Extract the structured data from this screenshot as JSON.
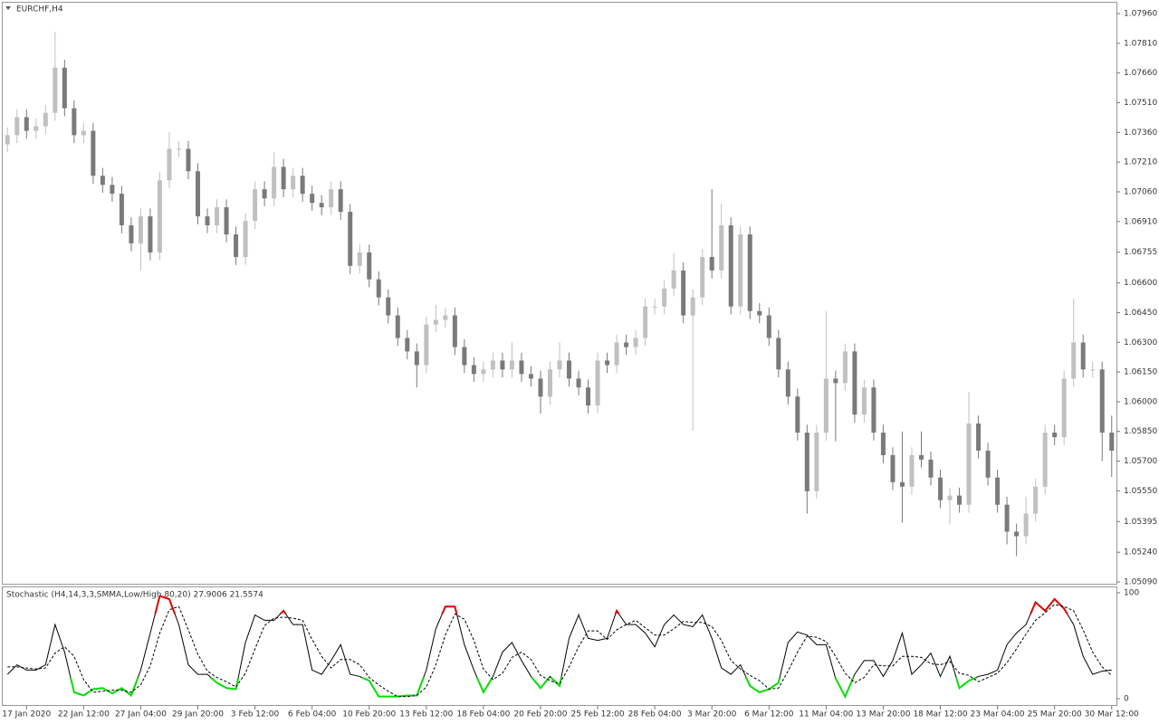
{
  "chart_data": [
    {
      "type": "candlestick",
      "title": "EURCHF,H4",
      "categories": [
        null,
        null,
        "17 Jan 2020",
        null,
        null,
        null,
        null,
        null,
        "22 Jan 12:00",
        null,
        null,
        null,
        null,
        null,
        "27 Jan 04:00",
        null,
        null,
        null,
        null,
        null,
        "29 Jan 20:00",
        null,
        null,
        null,
        null,
        null,
        "3 Feb 12:00",
        null,
        null,
        null,
        null,
        null,
        "6 Feb 04:00",
        null,
        null,
        null,
        null,
        null,
        "10 Feb 20:00",
        null,
        null,
        null,
        null,
        null,
        "13 Feb 12:00",
        null,
        null,
        null,
        null,
        null,
        "18 Feb 04:00",
        null,
        null,
        null,
        null,
        null,
        "20 Feb 20:00",
        null,
        null,
        null,
        null,
        null,
        "25 Feb 12:00",
        null,
        null,
        null,
        null,
        null,
        "28 Feb 04:00",
        null,
        null,
        null,
        null,
        null,
        "3 Mar 20:00",
        null,
        null,
        null,
        null,
        null,
        "6 Mar 12:00",
        null,
        null,
        null,
        null,
        null,
        "11 Mar 04:00",
        null,
        null,
        null,
        null,
        null,
        "13 Mar 20:00",
        null,
        null,
        null,
        null,
        null,
        "18 Mar 12:00",
        null,
        null,
        null,
        null,
        null,
        "23 Mar 04:00",
        null,
        null,
        null,
        null,
        null,
        "25 Mar 20:00",
        null,
        null,
        null,
        null,
        null,
        "30 Mar 12:00"
      ],
      "open": [
        1.073,
        1.07346,
        1.07437,
        1.07368,
        1.07391,
        1.07459,
        1.07687,
        1.07482,
        1.07346,
        1.07368,
        1.07141,
        1.07095,
        1.0705,
        1.06891,
        1.068,
        1.06936,
        1.06754,
        1.07118,
        1.07277,
        1.07277,
        1.07164,
        1.06936,
        1.06891,
        1.06982,
        1.06845,
        1.06731,
        1.06913,
        1.07073,
        1.07027,
        1.07186,
        1.07073,
        1.07141,
        1.0705,
        1.07004,
        1.06982,
        1.07073,
        1.06959,
        1.06686,
        1.06754,
        1.06618,
        1.06527,
        1.06436,
        1.06322,
        1.06254,
        1.06185,
        1.0639,
        1.06413,
        1.06436,
        1.06276,
        1.06185,
        1.0614,
        1.06163,
        1.06208,
        1.06163,
        1.06208,
        1.0614,
        1.06117,
        1.06026,
        1.06163,
        1.06208,
        1.06117,
        1.06072,
        1.05981,
        1.06208,
        1.06185,
        1.06299,
        1.06276,
        1.06322,
        1.06481,
        1.06481,
        1.06572,
        1.06663,
        1.06436,
        1.06527,
        1.06731,
        1.06663,
        1.06891,
        1.06481,
        1.06845,
        1.06458,
        1.06436,
        1.06322,
        1.06163,
        1.06026,
        1.05844,
        1.05548,
        1.05844,
        1.06117,
        1.06094,
        1.06254,
        1.05935,
        1.06072,
        1.05844,
        1.0573,
        1.05594,
        1.05571,
        1.0573,
        1.05708,
        1.05617,
        1.05503,
        1.05526,
        1.0548,
        1.0589,
        1.05753,
        1.05617,
        1.0548,
        1.05344,
        1.05321,
        1.05435,
        1.05571,
        1.05844,
        1.05821,
        1.06117,
        1.06299,
        1.06163,
        1.06163,
        1.05844
      ],
      "high": [
        1.07386,
        1.07477,
        1.07477,
        1.07431,
        1.07499,
        1.07869,
        1.07727,
        1.07522,
        1.07408,
        1.07408,
        1.07181,
        1.07135,
        1.0709,
        1.06931,
        1.06976,
        1.06976,
        1.07158,
        1.0736,
        1.07317,
        1.07317,
        1.07204,
        1.06976,
        1.07022,
        1.07022,
        1.06885,
        1.06953,
        1.07113,
        1.07113,
        1.0726,
        1.07226,
        1.07181,
        1.07181,
        1.0709,
        1.07044,
        1.07113,
        1.07113,
        1.06999,
        1.06794,
        1.06794,
        1.06658,
        1.06567,
        1.06476,
        1.06362,
        1.06294,
        1.0643,
        1.0649,
        1.06476,
        1.06476,
        1.06316,
        1.06225,
        1.06203,
        1.06248,
        1.06248,
        1.063,
        1.06248,
        1.0618,
        1.06157,
        1.06203,
        1.063,
        1.06248,
        1.06157,
        1.06112,
        1.06248,
        1.06248,
        1.06339,
        1.06339,
        1.06362,
        1.06521,
        1.06521,
        1.06612,
        1.0675,
        1.06703,
        1.06567,
        1.06771,
        1.07073,
        1.07,
        1.06931,
        1.06885,
        1.06885,
        1.06498,
        1.06476,
        1.06362,
        1.06203,
        1.06066,
        1.05884,
        1.05884,
        1.06458,
        1.06157,
        1.06294,
        1.06294,
        1.06112,
        1.06112,
        1.05884,
        1.0577,
        1.0585,
        1.0577,
        1.0585,
        1.05748,
        1.05657,
        1.05566,
        1.05566,
        1.0605,
        1.0593,
        1.05793,
        1.05657,
        1.0552,
        1.05384,
        1.0552,
        1.05611,
        1.05884,
        1.05884,
        1.06157,
        1.0652,
        1.06339,
        1.06203,
        1.06203,
        1.0593
      ],
      "low": [
        1.0726,
        1.07306,
        1.07328,
        1.07328,
        1.07351,
        1.07419,
        1.07442,
        1.07306,
        1.07306,
        1.07101,
        1.07055,
        1.0701,
        1.06851,
        1.0676,
        1.06663,
        1.06714,
        1.06714,
        1.07078,
        1.07237,
        1.07124,
        1.06896,
        1.06851,
        1.06851,
        1.06805,
        1.06691,
        1.06691,
        1.06873,
        1.06987,
        1.06987,
        1.07033,
        1.07033,
        1.0701,
        1.06964,
        1.06942,
        1.06942,
        1.06919,
        1.06646,
        1.06646,
        1.06578,
        1.06487,
        1.06396,
        1.06282,
        1.06214,
        1.06072,
        1.06145,
        1.0635,
        1.06373,
        1.06236,
        1.06145,
        1.061,
        1.061,
        1.06123,
        1.06123,
        1.06123,
        1.061,
        1.06077,
        1.0594,
        1.05986,
        1.06123,
        1.06077,
        1.06032,
        1.05941,
        1.05941,
        1.06145,
        1.06145,
        1.06236,
        1.06236,
        1.06282,
        1.06441,
        1.06441,
        1.06532,
        1.06396,
        1.05853,
        1.06487,
        1.06623,
        1.06623,
        1.06441,
        1.06441,
        1.06418,
        1.06396,
        1.06282,
        1.06123,
        1.05986,
        1.05804,
        1.05435,
        1.05508,
        1.05804,
        1.058,
        1.06054,
        1.05895,
        1.05895,
        1.05804,
        1.0569,
        1.05554,
        1.0539,
        1.05531,
        1.05668,
        1.05577,
        1.05463,
        1.0538,
        1.0544,
        1.0544,
        1.05713,
        1.05577,
        1.0544,
        1.0528,
        1.0522,
        1.05281,
        1.05395,
        1.05531,
        1.05781,
        1.05781,
        1.06077,
        1.06123,
        1.06123,
        1.057,
        1.0562
      ],
      "close": [
        1.07346,
        1.07437,
        1.07368,
        1.07391,
        1.07459,
        1.07687,
        1.07482,
        1.07346,
        1.07368,
        1.07141,
        1.07095,
        1.0705,
        1.06891,
        1.068,
        1.06936,
        1.06754,
        1.07118,
        1.07277,
        1.07277,
        1.07164,
        1.06936,
        1.06891,
        1.06982,
        1.06845,
        1.06731,
        1.06913,
        1.07073,
        1.07027,
        1.07186,
        1.07073,
        1.07141,
        1.0705,
        1.07004,
        1.06982,
        1.07073,
        1.06959,
        1.06686,
        1.06754,
        1.06618,
        1.06527,
        1.06436,
        1.06322,
        1.06254,
        1.06185,
        1.0639,
        1.06413,
        1.06436,
        1.06276,
        1.06185,
        1.0614,
        1.06163,
        1.06208,
        1.06163,
        1.06208,
        1.0614,
        1.06117,
        1.06026,
        1.06163,
        1.06208,
        1.06117,
        1.06072,
        1.05981,
        1.06208,
        1.06185,
        1.06299,
        1.06276,
        1.06322,
        1.06481,
        1.06481,
        1.06572,
        1.06663,
        1.06436,
        1.06527,
        1.06731,
        1.06663,
        1.06891,
        1.06481,
        1.06845,
        1.06458,
        1.06436,
        1.06322,
        1.06163,
        1.06026,
        1.05844,
        1.05548,
        1.05844,
        1.06117,
        1.06094,
        1.06254,
        1.05935,
        1.06072,
        1.05844,
        1.0573,
        1.05594,
        1.05571,
        1.0573,
        1.05708,
        1.05617,
        1.05503,
        1.05526,
        1.0548,
        1.0589,
        1.05753,
        1.05617,
        1.0548,
        1.05344,
        1.05321,
        1.05435,
        1.05571,
        1.05844,
        1.05821,
        1.06117,
        1.06299,
        1.06163,
        1.06163,
        1.05844,
        1.05753
      ],
      "up_color": "#c0c0c0",
      "down_color": "#7a7a7a",
      "ylim": [
        1.05081,
        1.08015
      ],
      "yticks": [
        {
          "value": 1.0796,
          "label": "1.07960"
        },
        {
          "value": 1.0781,
          "label": "1.07810"
        },
        {
          "value": 1.0766,
          "label": "1.07660"
        },
        {
          "value": 1.0751,
          "label": "1.07510"
        },
        {
          "value": 1.0736,
          "label": "1.07360"
        },
        {
          "value": 1.0721,
          "label": "1.07210"
        },
        {
          "value": 1.0706,
          "label": "1.07060"
        },
        {
          "value": 1.0691,
          "label": "1.06910"
        },
        1.06755,
        {
          "value": 1.066,
          "label": "1.06600"
        },
        {
          "value": 1.0645,
          "label": "1.06450"
        },
        {
          "value": 1.063,
          "label": "1.06300"
        },
        {
          "value": 1.0615,
          "label": "1.06150"
        },
        {
          "value": 1.06,
          "label": "1.06000"
        },
        {
          "value": 1.0585,
          "label": "1.05850"
        },
        {
          "value": 1.057,
          "label": "1.05700"
        },
        {
          "value": 1.0555,
          "label": "1.05550"
        },
        1.05395,
        {
          "value": 1.0524,
          "label": "1.05240"
        },
        {
          "value": 1.0509,
          "label": "1.05090"
        }
      ]
    },
    {
      "type": "line",
      "title": "Stochastic (H4,14,3,3,SMMA,Low/High,80,20) 27.9006 21.5574",
      "series": [
        {
          "color": "#000000",
          "values": [
            23,
            32,
            27,
            27,
            32,
            70,
            44,
            6,
            3,
            9,
            10,
            5,
            10,
            3,
            27,
            62,
            97,
            94,
            70,
            32,
            23,
            23,
            15,
            10,
            9,
            53,
            79,
            74,
            74,
            83,
            70,
            70,
            27,
            23,
            36,
            51,
            23,
            21,
            17,
            2,
            2,
            2,
            3,
            3,
            27,
            66,
            87,
            87,
            51,
            27,
            6,
            21,
            44,
            53,
            36,
            21,
            10,
            21,
            12,
            57,
            79,
            57,
            55,
            57,
            83,
            70,
            70,
            62,
            49,
            70,
            79,
            70,
            68,
            79,
            57,
            29,
            23,
            32,
            12,
            6,
            9,
            15,
            53,
            63,
            60,
            51,
            51,
            19,
            2,
            23,
            36,
            36,
            21,
            36,
            62,
            23,
            32,
            43,
            21,
            40,
            10,
            17,
            21,
            23,
            27,
            51,
            62,
            70,
            91,
            83,
            94,
            85,
            70,
            40,
            23,
            26,
            27
          ]
        },
        {
          "color": "#000000",
          "dashed": true,
          "values": [
            30,
            30,
            29,
            28,
            29,
            43,
            49,
            40,
            18,
            6,
            7,
            8,
            8,
            6,
            13,
            31,
            62,
            84,
            87,
            65,
            42,
            26,
            20,
            16,
            11,
            24,
            47,
            69,
            76,
            77,
            76,
            74,
            56,
            40,
            29,
            37,
            37,
            32,
            20,
            13,
            7,
            2,
            2,
            3,
            11,
            32,
            60,
            80,
            75,
            55,
            28,
            18,
            24,
            39,
            44,
            37,
            22,
            17,
            14,
            30,
            49,
            64,
            64,
            56,
            65,
            70,
            74,
            67,
            60,
            60,
            66,
            73,
            72,
            72,
            68,
            55,
            36,
            28,
            22,
            17,
            9,
            10,
            26,
            44,
            59,
            58,
            54,
            40,
            24,
            15,
            20,
            32,
            31,
            31,
            40,
            40,
            39,
            33,
            32,
            35,
            24,
            22,
            16,
            20,
            24,
            34,
            47,
            61,
            74,
            81,
            89,
            87,
            83,
            65,
            44,
            30,
            22
          ]
        }
      ],
      "upper_level": 80,
      "lower_level": 20,
      "upper_color": "#e00000",
      "lower_color": "#00e000",
      "ylim": [
        0,
        100
      ],
      "yticks": [
        0,
        100
      ]
    }
  ]
}
